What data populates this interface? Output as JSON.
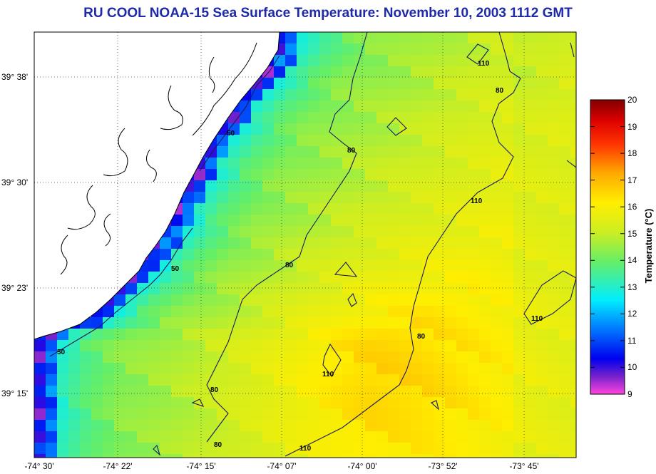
{
  "title": "RU COOL  NOAA-15  Sea Surface Temperature:  November 10, 2003 1112 GMT",
  "latitude_labels": [
    "39° 38'",
    "39° 30'",
    "39° 23'",
    "39° 15'"
  ],
  "longitude_labels": [
    "-74° 30'",
    "-74° 22'",
    "-74° 15'",
    "-74° 07'",
    "-74° 00'",
    "-73° 52'",
    "-73° 45'"
  ],
  "colorbar": {
    "title": "Temperature (°C)",
    "min": 9,
    "max": 20,
    "ticks": [
      "20",
      "19",
      "18",
      "17",
      "16",
      "15",
      "14",
      "13",
      "12",
      "11",
      "10",
      "9"
    ]
  },
  "contour_labels": [
    "110",
    "80",
    "80",
    "110",
    "80",
    "50",
    "50",
    "50",
    "80",
    "110",
    "80",
    "80",
    "110",
    "110"
  ],
  "colors": {
    "title": "#1e2aa8",
    "land": "#ffffff",
    "coastline": "#000000",
    "cold": "#ff40d0",
    "warm": "#ffee00"
  }
}
